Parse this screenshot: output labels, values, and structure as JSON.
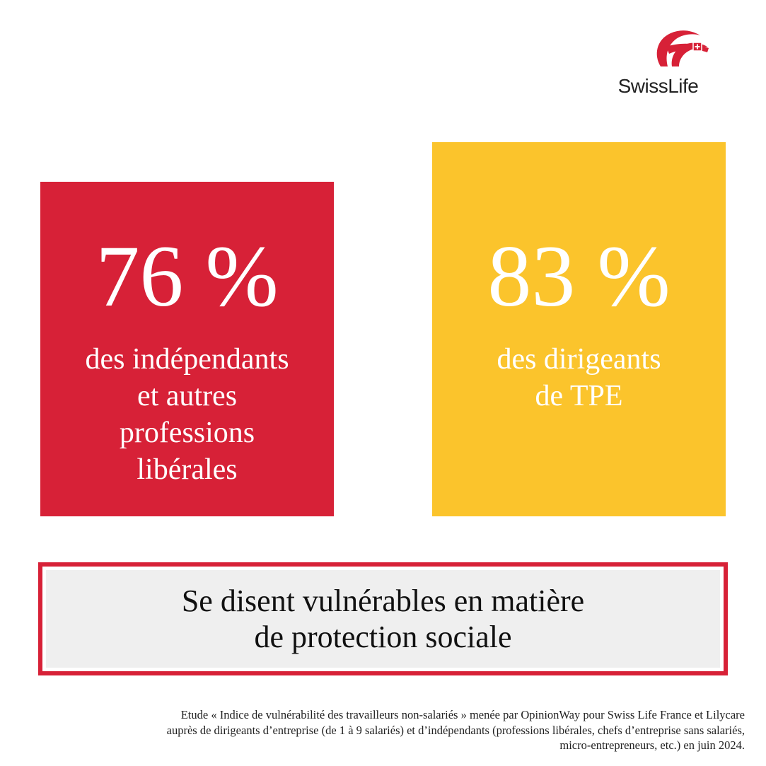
{
  "brand": {
    "logo_text": "SwissLife",
    "logo_icon": "swiss-life-ribbon-icon",
    "red": "#d72137",
    "yellow": "#fbc42c"
  },
  "cards": [
    {
      "percent": "76 %",
      "lines": [
        "des indépendants",
        "et autres",
        "professions",
        "libérales"
      ]
    },
    {
      "percent": "83 %",
      "lines": [
        "des dirigeants",
        "de TPE"
      ]
    }
  ],
  "statement": {
    "lines": [
      "Se disent vulnérables en matière",
      "de protection sociale"
    ]
  },
  "footnote": {
    "lines": [
      "Etude « Indice de vulnérabilité des travailleurs non-salariés » menée par OpinionWay pour Swiss Life France et Lilycare",
      "auprès de dirigeants d’entreprise (de 1 à 9 salariés) et d’indépendants (professions libérales, chefs d’entreprise sans salariés,",
      "micro-entrepreneurs, etc.) en juin 2024."
    ]
  }
}
